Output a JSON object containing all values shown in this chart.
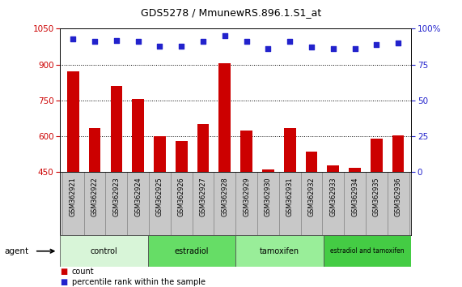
{
  "title": "GDS5278 / MmunewRS.896.1.S1_at",
  "samples": [
    "GSM362921",
    "GSM362922",
    "GSM362923",
    "GSM362924",
    "GSM362925",
    "GSM362926",
    "GSM362927",
    "GSM362928",
    "GSM362929",
    "GSM362930",
    "GSM362931",
    "GSM362932",
    "GSM362933",
    "GSM362934",
    "GSM362935",
    "GSM362936"
  ],
  "counts": [
    870,
    635,
    810,
    755,
    600,
    580,
    650,
    905,
    625,
    460,
    635,
    535,
    480,
    470,
    590,
    605
  ],
  "percentile_ranks": [
    93,
    91,
    92,
    91,
    88,
    88,
    91,
    95,
    91,
    86,
    91,
    87,
    86,
    86,
    89,
    90
  ],
  "ylim_left": [
    450,
    1050
  ],
  "ylim_right": [
    0,
    100
  ],
  "yticks_left": [
    450,
    600,
    750,
    900,
    1050
  ],
  "yticks_right": [
    0,
    25,
    50,
    75,
    100
  ],
  "grid_yticks": [
    600,
    750,
    900
  ],
  "bar_color": "#cc0000",
  "dot_color": "#2222cc",
  "groups": [
    {
      "label": "control",
      "start": 0,
      "end": 4,
      "color": "#d8f5d8"
    },
    {
      "label": "estradiol",
      "start": 4,
      "end": 8,
      "color": "#66dd66"
    },
    {
      "label": "tamoxifen",
      "start": 8,
      "end": 12,
      "color": "#99ee99"
    },
    {
      "label": "estradiol and tamoxifen",
      "start": 12,
      "end": 16,
      "color": "#44cc44"
    }
  ],
  "agent_label": "agent",
  "legend_count_label": "count",
  "legend_pct_label": "percentile rank within the sample",
  "bg_plot": "#ffffff",
  "bg_tick_area": "#c8c8c8",
  "fig_bg": "#ffffff"
}
